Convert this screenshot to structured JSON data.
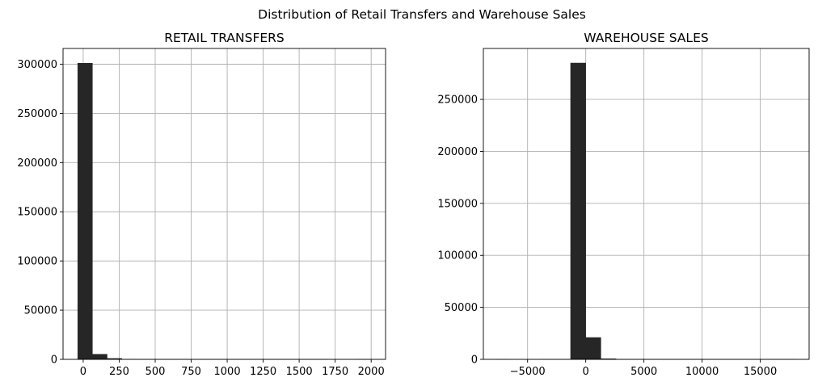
{
  "suptitle": "Distribution of Retail Transfers and Warehouse Sales",
  "chart_data": [
    {
      "type": "bar",
      "title": "RETAIL TRANSFERS",
      "xlabel": "",
      "ylabel": "",
      "bins": [
        {
          "x0": -38,
          "x1": 64,
          "count": 301000
        },
        {
          "x0": 64,
          "x1": 166,
          "count": 5200
        },
        {
          "x0": 166,
          "x1": 268,
          "count": 900
        },
        {
          "x0": 268,
          "x1": 370,
          "count": 200
        },
        {
          "x0": 370,
          "x1": 472,
          "count": 80
        },
        {
          "x0": 472,
          "x1": 574,
          "count": 40
        },
        {
          "x0": 574,
          "x1": 676,
          "count": 20
        },
        {
          "x0": 676,
          "x1": 778,
          "count": 12
        },
        {
          "x0": 778,
          "x1": 880,
          "count": 8
        },
        {
          "x0": 880,
          "x1": 982,
          "count": 5
        },
        {
          "x0": 982,
          "x1": 1084,
          "count": 4
        },
        {
          "x0": 1084,
          "x1": 1186,
          "count": 3
        },
        {
          "x0": 1186,
          "x1": 1288,
          "count": 2
        },
        {
          "x0": 1288,
          "x1": 1390,
          "count": 2
        },
        {
          "x0": 1390,
          "x1": 1492,
          "count": 1
        },
        {
          "x0": 1492,
          "x1": 1594,
          "count": 1
        },
        {
          "x0": 1594,
          "x1": 1696,
          "count": 1
        },
        {
          "x0": 1696,
          "x1": 1798,
          "count": 0
        },
        {
          "x0": 1798,
          "x1": 1900,
          "count": 0
        },
        {
          "x0": 1900,
          "x1": 2002,
          "count": 1
        }
      ],
      "xlim": [
        -140,
        2100
      ],
      "ylim": [
        0,
        316000
      ],
      "xticks": [
        0,
        250,
        500,
        750,
        1000,
        1250,
        1500,
        1750,
        2000
      ],
      "yticks": [
        0,
        50000,
        100000,
        150000,
        200000,
        250000,
        300000
      ],
      "grid": true
    },
    {
      "type": "bar",
      "title": "WAREHOUSE SALES",
      "xlabel": "",
      "ylabel": "",
      "bins": [
        {
          "x0": -7800,
          "x1": -6500,
          "count": 1
        },
        {
          "x0": -6500,
          "x1": -5200,
          "count": 0
        },
        {
          "x0": -5200,
          "x1": -3900,
          "count": 0
        },
        {
          "x0": -3900,
          "x1": -2600,
          "count": 2
        },
        {
          "x0": -2600,
          "x1": -1300,
          "count": 30
        },
        {
          "x0": -1300,
          "x1": 0,
          "count": 285000
        },
        {
          "x0": 0,
          "x1": 1300,
          "count": 21000
        },
        {
          "x0": 1300,
          "x1": 2600,
          "count": 600
        },
        {
          "x0": 2600,
          "x1": 3900,
          "count": 150
        },
        {
          "x0": 3900,
          "x1": 5200,
          "count": 60
        },
        {
          "x0": 5200,
          "x1": 6500,
          "count": 25
        },
        {
          "x0": 6500,
          "x1": 7800,
          "count": 12
        },
        {
          "x0": 7800,
          "x1": 9100,
          "count": 6
        },
        {
          "x0": 9100,
          "x1": 10400,
          "count": 4
        },
        {
          "x0": 10400,
          "x1": 11700,
          "count": 3
        },
        {
          "x0": 11700,
          "x1": 13000,
          "count": 2
        },
        {
          "x0": 13000,
          "x1": 14300,
          "count": 1
        },
        {
          "x0": 14300,
          "x1": 15600,
          "count": 1
        },
        {
          "x0": 15600,
          "x1": 16900,
          "count": 1
        },
        {
          "x0": 16900,
          "x1": 18200,
          "count": 1
        }
      ],
      "xlim": [
        -8800,
        19200
      ],
      "ylim": [
        0,
        299000
      ],
      "xticks": [
        -5000,
        0,
        5000,
        10000,
        15000
      ],
      "yticks": [
        0,
        50000,
        100000,
        150000,
        200000,
        250000
      ],
      "grid": true
    }
  ]
}
